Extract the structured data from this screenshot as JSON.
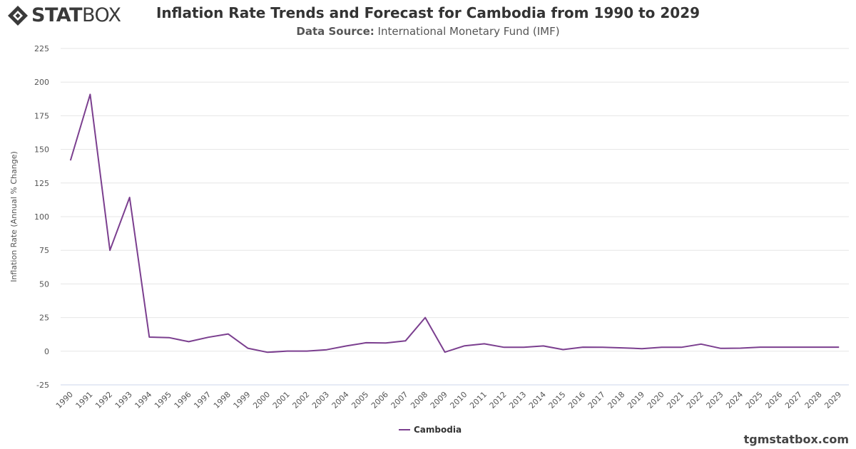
{
  "brand": {
    "name_bold": "STAT",
    "name_light": "BOX"
  },
  "header": {
    "title": "Inflation Rate Trends and Forecast for Cambodia from 1990 to 2029",
    "source_label": "Data Source:",
    "source_value": "International Monetary Fund (IMF)"
  },
  "watermark": "tgmstatbox.com",
  "chart_data": {
    "type": "line",
    "title": "Inflation Rate Trends and Forecast for Cambodia from 1990 to 2029",
    "subtitle": "Data Source: International Monetary Fund (IMF)",
    "xlabel": "",
    "ylabel": "Inflation Rate (Annual % Change)",
    "ylim": [
      -25,
      225
    ],
    "yticks": [
      -25,
      0,
      25,
      50,
      75,
      100,
      125,
      150,
      175,
      200,
      225
    ],
    "grid": true,
    "legend_position": "bottom-center",
    "categories": [
      "1990",
      "1991",
      "1992",
      "1993",
      "1994",
      "1995",
      "1996",
      "1997",
      "1998",
      "1999",
      "2000",
      "2001",
      "2002",
      "2003",
      "2004",
      "2005",
      "2006",
      "2007",
      "2008",
      "2009",
      "2010",
      "2011",
      "2012",
      "2013",
      "2014",
      "2015",
      "2016",
      "2017",
      "2018",
      "2019",
      "2020",
      "2021",
      "2022",
      "2023",
      "2024",
      "2025",
      "2026",
      "2027",
      "2028",
      "2029"
    ],
    "series": [
      {
        "name": "Cambodia",
        "color": "#7b3f8f",
        "values": [
          141.8,
          190.9,
          75.0,
          114.3,
          10.5,
          10.1,
          7.1,
          10.4,
          12.8,
          2.2,
          -0.8,
          0.1,
          0.1,
          1.1,
          3.9,
          6.3,
          6.1,
          7.7,
          25.0,
          -0.7,
          4.0,
          5.5,
          2.9,
          2.9,
          3.9,
          1.2,
          3.0,
          2.9,
          2.5,
          1.9,
          2.9,
          2.9,
          5.3,
          2.1,
          2.3,
          3.0,
          3.0,
          3.0,
          3.0,
          3.0
        ]
      }
    ]
  }
}
